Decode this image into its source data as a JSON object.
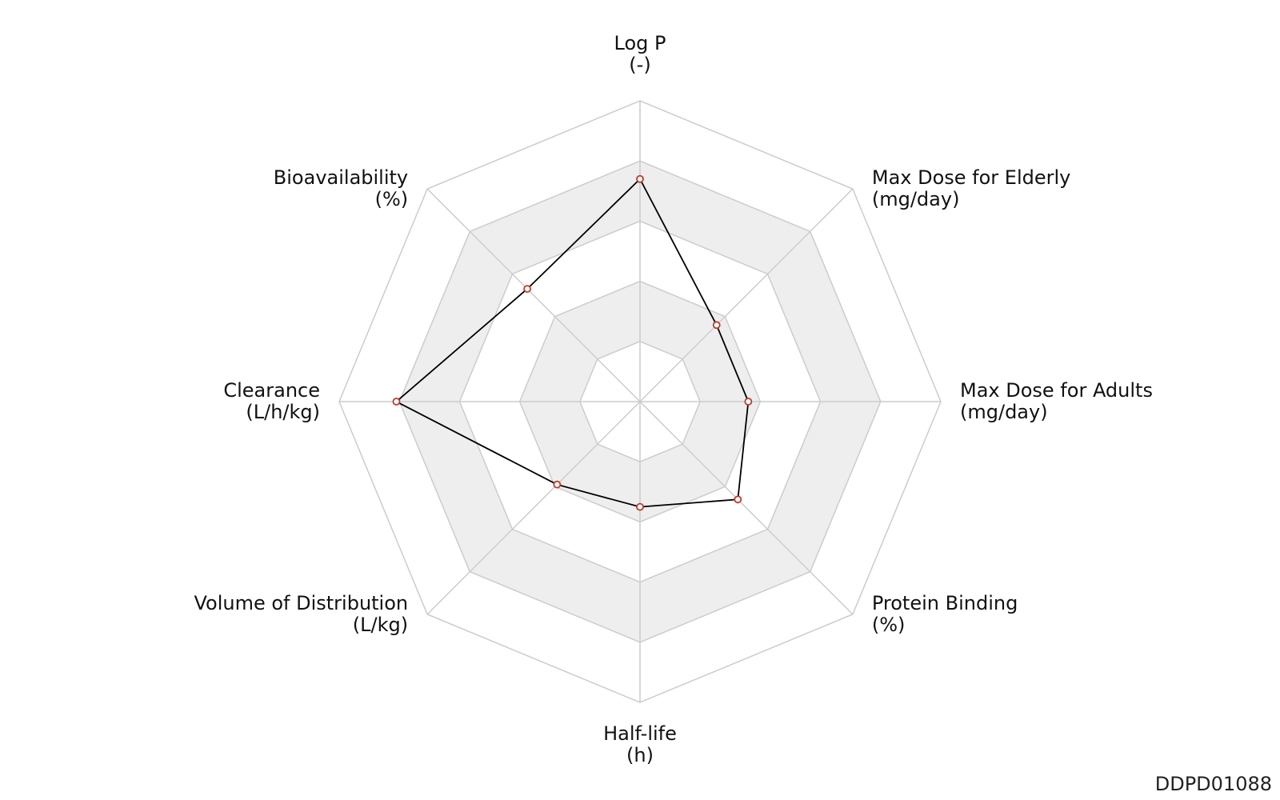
{
  "chart_data": {
    "type": "radar",
    "title": "",
    "axes": [
      {
        "name": "Log P",
        "unit": "(-)"
      },
      {
        "name": "Max Dose for Elderly",
        "unit": "(mg/day)"
      },
      {
        "name": "Max Dose for Adults",
        "unit": "(mg/day)"
      },
      {
        "name": "Protein Binding",
        "unit": "(%)"
      },
      {
        "name": "Half-life",
        "unit": "(h)"
      },
      {
        "name": "Volume of Distribution",
        "unit": "(L/kg)"
      },
      {
        "name": "Clearance",
        "unit": "(L/h/kg)"
      },
      {
        "name": "Bioavailability",
        "unit": "(%)"
      }
    ],
    "rings": 5,
    "range": [
      0,
      1
    ],
    "series": [
      {
        "values": [
          0.74,
          0.36,
          0.36,
          0.46,
          0.35,
          0.39,
          0.81,
          0.53
        ]
      }
    ],
    "ring_colors": [
      "#ffffff",
      "#eeeeee"
    ],
    "grid_color": "#cccccc",
    "line_color": "#000000",
    "marker_color": "#c0392b"
  },
  "footer": {
    "id": "DDPD01088"
  }
}
